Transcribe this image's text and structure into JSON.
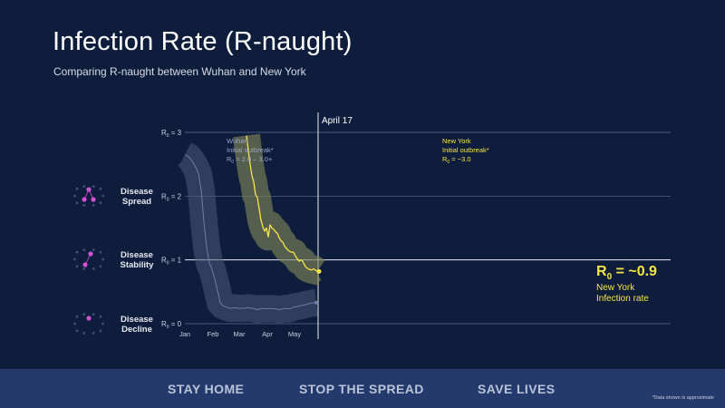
{
  "header": {
    "title": "Infection Rate (R-naught)",
    "subtitle": "Comparing R-naught between Wuhan and New York"
  },
  "legend": [
    {
      "line1": "Disease",
      "line2": "Spread"
    },
    {
      "line1": "Disease",
      "line2": "Stability"
    },
    {
      "line1": "Disease",
      "line2": "Decline"
    }
  ],
  "footer": {
    "items": [
      "STAY HOME",
      "STOP THE SPREAD",
      "SAVE LIVES"
    ],
    "footnote": "*Data shown is approximate"
  },
  "chart_data": {
    "type": "line",
    "title": "Infection Rate (R-naught)",
    "subtitle": "Comparing R-naught between Wuhan and New York",
    "xlabel": "",
    "ylabel": "",
    "x_ticks": [
      "Jan",
      "Feb",
      "Mar",
      "Apr",
      "May"
    ],
    "x_range": [
      "Jan 1",
      "May 1"
    ],
    "y_ticks": [
      {
        "sub": "0",
        "suffix": " = 3",
        "value": 3
      },
      {
        "sub": "0",
        "suffix": " = 2",
        "value": 2
      },
      {
        "sub": "0",
        "suffix": " = 1",
        "value": 1
      },
      {
        "sub": "0",
        "suffix": " = 0",
        "value": 0
      }
    ],
    "ylim": [
      0,
      3
    ],
    "grid": true,
    "colors": {
      "wuhan": "#6e7ea5",
      "new_york": "#f6e548",
      "band": "#4a5a78"
    },
    "series": [
      {
        "name": "Wuhan",
        "annotation": {
          "line1": "Wuhan",
          "line2": "Initial outbreak*",
          "r_prefix": "R",
          "r_sub": "0",
          "r_rest": " = 2.0 – 3.0+"
        },
        "x_days": [
          0,
          4,
          8,
          12,
          15,
          18,
          21,
          24,
          27,
          30,
          33,
          36,
          39,
          42,
          46,
          50,
          55,
          60,
          65,
          70,
          75,
          80,
          85,
          90,
          95,
          100,
          105,
          110,
          115,
          120,
          124,
          127,
          130,
          133,
          136,
          139,
          145
        ],
        "values": [
          2.65,
          2.62,
          2.55,
          2.45,
          2.35,
          2.1,
          1.6,
          1.2,
          0.95,
          0.85,
          0.7,
          0.52,
          0.33,
          0.28,
          0.26,
          0.24,
          0.25,
          0.24,
          0.24,
          0.25,
          0.24,
          0.22,
          0.24,
          0.23,
          0.24,
          0.23,
          0.22,
          0.24,
          0.23,
          0.26,
          0.27,
          0.28,
          0.29,
          0.3,
          0.31,
          0.32,
          0.33
        ]
      },
      {
        "name": "New York",
        "annotation": {
          "line1": "New York",
          "line2": "Initial outbreak*",
          "r_prefix": "R",
          "r_sub": "0",
          "r_rest": " = ~3.0"
        },
        "x_days": [
          68,
          70,
          72,
          74,
          76,
          78,
          80,
          82,
          84,
          86,
          88,
          90,
          92,
          94,
          96,
          98,
          100,
          102,
          104,
          106,
          108,
          110,
          112,
          114,
          116,
          118,
          120,
          122,
          124,
          126,
          128,
          130,
          132,
          134,
          136,
          138,
          140,
          142,
          144,
          146,
          148
        ],
        "values": [
          2.95,
          2.72,
          2.5,
          2.32,
          2.22,
          2.02,
          1.98,
          1.8,
          1.62,
          1.52,
          1.45,
          1.5,
          1.36,
          1.55,
          1.5,
          1.48,
          1.44,
          1.42,
          1.35,
          1.3,
          1.28,
          1.22,
          1.18,
          1.15,
          1.13,
          1.12,
          1.12,
          1.06,
          1.02,
          0.98,
          1.0,
          0.98,
          0.92,
          0.88,
          0.86,
          0.85,
          0.84,
          0.86,
          0.84,
          0.82,
          0.82
        ]
      }
    ],
    "marker_line": {
      "label": "April 17",
      "day": 147
    },
    "result": {
      "r_prefix": "R",
      "r_sub": "0",
      "r_rest": " = ~0.9",
      "line1": "New York",
      "line2": "Infection rate"
    }
  }
}
